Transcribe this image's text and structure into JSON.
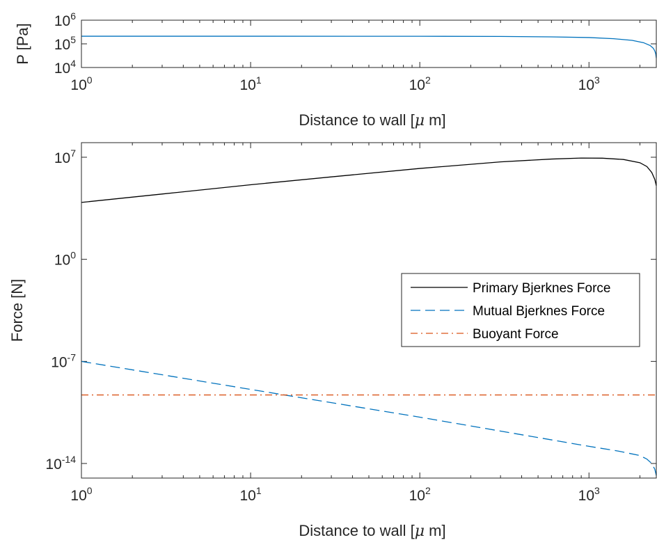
{
  "chart_data": [
    {
      "type": "line",
      "x_scale": "log",
      "y_scale": "log",
      "xlim": [
        1,
        2500
      ],
      "ylim": [
        10000,
        1000000
      ],
      "xlabel_main": "Distance to wall [",
      "xlabel_mu": "μ",
      "xlabel_tail": " m]",
      "ylabel": "P [Pa]",
      "x_ticks": [
        {
          "value": 1,
          "base": "10",
          "exp": "0"
        },
        {
          "value": 10,
          "base": "10",
          "exp": "1"
        },
        {
          "value": 100,
          "base": "10",
          "exp": "2"
        },
        {
          "value": 1000,
          "base": "10",
          "exp": "3"
        }
      ],
      "y_ticks": [
        {
          "value": 10000,
          "base": "10",
          "exp": "4"
        },
        {
          "value": 100000,
          "base": "10",
          "exp": "5"
        },
        {
          "value": 1000000,
          "base": "10",
          "exp": "6"
        }
      ],
      "series": [
        {
          "color": "#0072BD",
          "style": "solid",
          "x": [
            1,
            10,
            100,
            300,
            600,
            1000,
            1400,
            1800,
            2100,
            2300,
            2400,
            2450,
            2480,
            2500
          ],
          "y": [
            210000,
            210000,
            209000,
            205000,
            197000,
            185000,
            165000,
            140000,
            112000,
            85000,
            65000,
            50000,
            38000,
            25000
          ]
        }
      ]
    },
    {
      "type": "line",
      "x_scale": "log",
      "y_scale": "log",
      "xlim": [
        1,
        2500
      ],
      "ylim": [
        1e-15,
        100000000.0
      ],
      "xlabel_main": "Distance to wall [",
      "xlabel_mu": "μ",
      "xlabel_tail": " m]",
      "ylabel": "Force [N]",
      "legend_position": "center-right",
      "x_ticks": [
        {
          "value": 1,
          "base": "10",
          "exp": "0"
        },
        {
          "value": 10,
          "base": "10",
          "exp": "1"
        },
        {
          "value": 100,
          "base": "10",
          "exp": "2"
        },
        {
          "value": 1000,
          "base": "10",
          "exp": "3"
        }
      ],
      "y_ticks": [
        {
          "value": 1e-14,
          "base": "10",
          "exp": "-14"
        },
        {
          "value": 1e-07,
          "base": "10",
          "exp": "-7"
        },
        {
          "value": 1,
          "base": "10",
          "exp": "0"
        },
        {
          "value": 10000000.0,
          "base": "10",
          "exp": "7"
        }
      ],
      "series": [
        {
          "name": "Primary Bjerknes Force",
          "color": "#000000",
          "style": "solid",
          "x": [
            1,
            3,
            10,
            30,
            100,
            300,
            600,
            900,
            1200,
            1600,
            2000,
            2200,
            2350,
            2450,
            2500
          ],
          "y": [
            8000.0,
            30000.0,
            130000.0,
            450000.0,
            1700000.0,
            4800000.0,
            7500000.0,
            8800000.0,
            8600000.0,
            7000000.0,
            4200000.0,
            2300000.0,
            900000.0,
            300000.0,
            110000.0
          ]
        },
        {
          "name": "Mutual Bjerknes Force",
          "color": "#0072BD",
          "style": "dashed",
          "x": [
            1,
            10,
            100,
            1000,
            1500,
            2000,
            2200,
            2350,
            2450,
            2500
          ],
          "y": [
            1e-07,
            1.2e-09,
            1.5e-11,
            1.5e-13,
            7e-14,
            3.5e-14,
            2e-14,
            1e-14,
            4e-15,
            1.5e-15
          ]
        },
        {
          "name": "Buoyant Force",
          "color": "#D95319",
          "style": "dashdot",
          "x": [
            1,
            2500
          ],
          "y": [
            5e-10,
            5e-10
          ]
        }
      ]
    }
  ]
}
